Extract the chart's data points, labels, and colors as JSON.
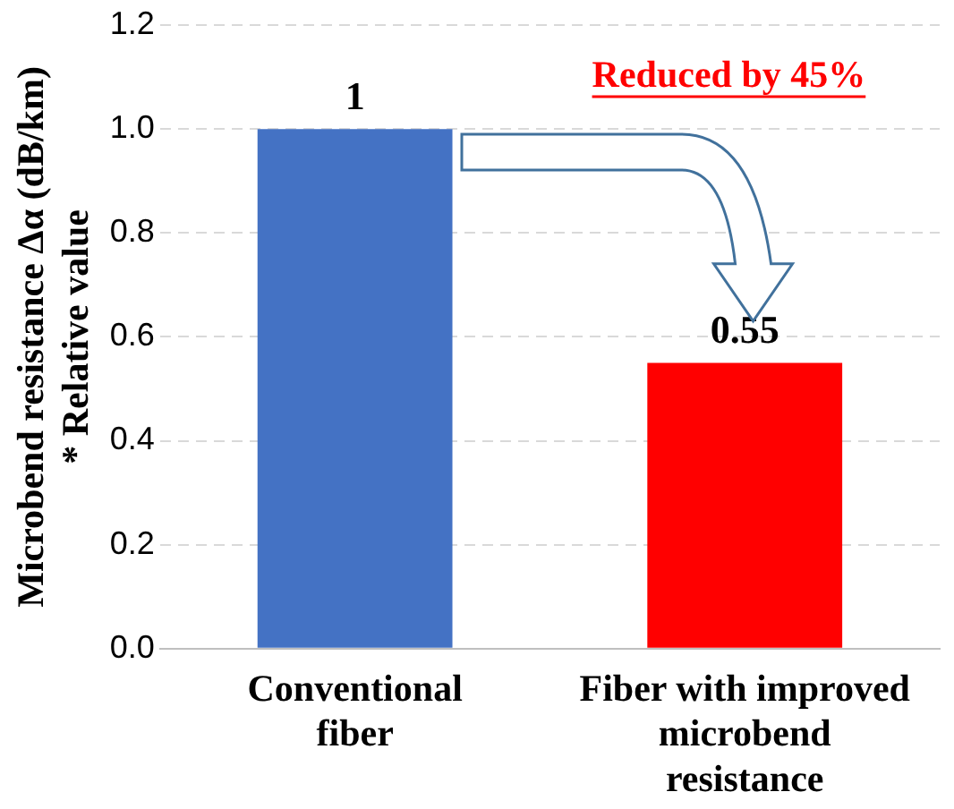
{
  "chart_data": {
    "type": "bar",
    "ylabel": "Microbend resistance Δα (dB/km)\n* Relative value",
    "categories": [
      "Conventional\nfiber",
      "Fiber with improved\nmicrobend\nresistance"
    ],
    "values": [
      1,
      0.55
    ],
    "colors": [
      "#4472c4",
      "#ff0000"
    ],
    "value_labels": [
      "1",
      "0.55"
    ],
    "ylim": [
      0,
      1.2
    ],
    "yticks": [
      {
        "value": 0,
        "label": "0.0"
      },
      {
        "value": 0.2,
        "label": "0.2"
      },
      {
        "value": 0.4,
        "label": "0.4"
      },
      {
        "value": 0.6,
        "label": "0.6"
      },
      {
        "value": 0.8,
        "label": "0.8"
      },
      {
        "value": 1,
        "label": "1.0"
      },
      {
        "value": 1.2,
        "label": "1.2"
      }
    ],
    "grid": "y",
    "legend": false,
    "annotations": [
      "Reduced by 45%"
    ]
  }
}
